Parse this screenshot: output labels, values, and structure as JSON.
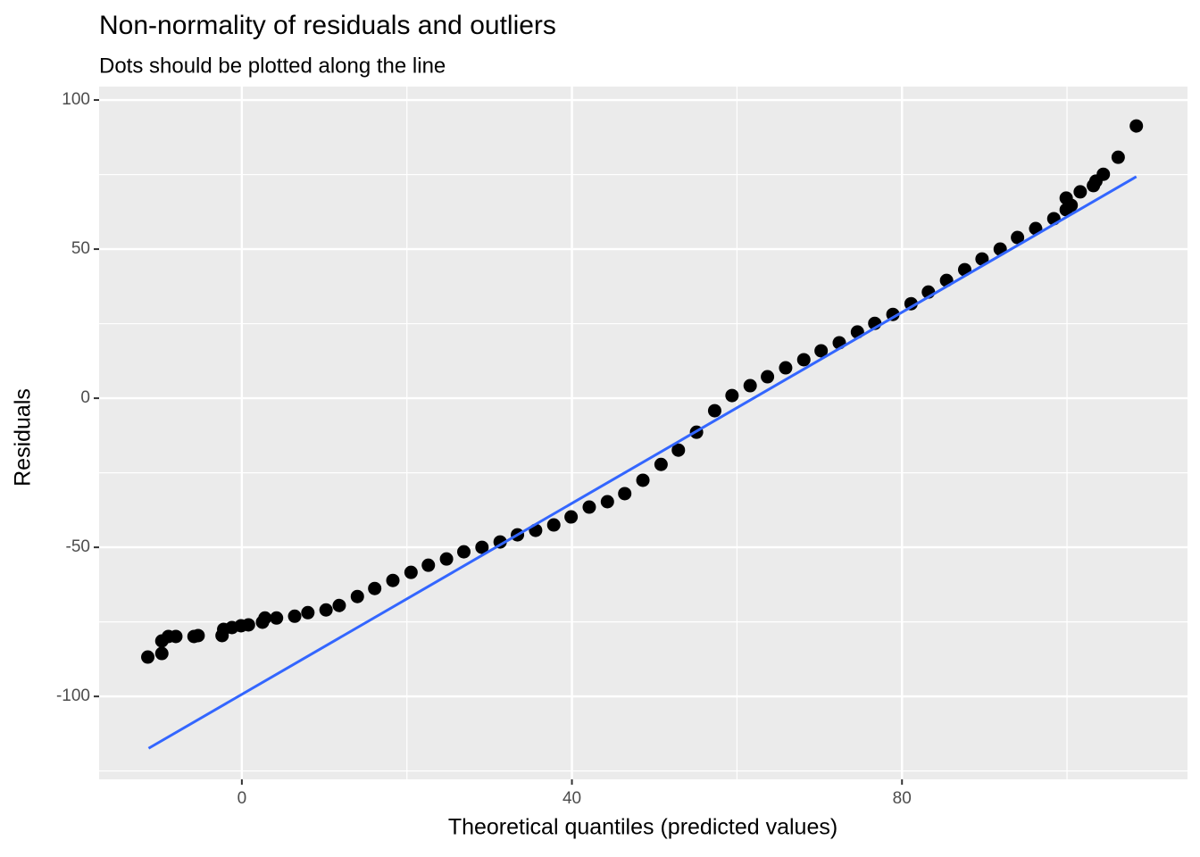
{
  "chart_data": {
    "type": "scatter",
    "title": "Non-normality of residuals and outliers",
    "subtitle": "Dots should be plotted along the line",
    "x_label": "Theoretical quantiles (predicted values)",
    "y_label": "Residuals",
    "xlim": [
      -17.3,
      114.6
    ],
    "ylim": [
      -127.8,
      104.5
    ],
    "xticks": [
      0,
      40,
      80
    ],
    "yticks": [
      -100,
      -50,
      0,
      50,
      100
    ],
    "grid": true,
    "minor_grid": true,
    "series": [
      {
        "type": "scatter",
        "color": "#000000",
        "x": [
          -11.4,
          -9.7,
          -9.7,
          -8.9,
          -8.0,
          -5.8,
          -5.3,
          -2.4,
          -2.2,
          -1.2,
          -0.1,
          0.8,
          2.5,
          2.8,
          4.2,
          6.4,
          8.0,
          10.2,
          11.8,
          14.0,
          16.1,
          18.3,
          20.5,
          22.6,
          24.8,
          26.9,
          29.1,
          31.3,
          33.4,
          35.6,
          37.8,
          39.9,
          42.1,
          44.3,
          46.4,
          48.6,
          50.8,
          52.9,
          55.1,
          57.3,
          59.4,
          61.6,
          63.7,
          65.9,
          68.1,
          70.2,
          72.4,
          74.6,
          76.7,
          78.9,
          81.1,
          83.2,
          85.4,
          87.6,
          89.7,
          91.9,
          94.0,
          96.2,
          98.4,
          99.9,
          100.5,
          99.9,
          101.6,
          103.2,
          103.5,
          104.4,
          106.2,
          108.4
        ],
        "values": [
          -86.8,
          -85.6,
          -81.4,
          -79.9,
          -79.9,
          -79.9,
          -79.6,
          -79.6,
          -77.5,
          -76.9,
          -76.3,
          -76.0,
          -75.1,
          -73.7,
          -73.7,
          -73.1,
          -71.9,
          -71.0,
          -69.5,
          -66.5,
          -63.8,
          -61.1,
          -58.4,
          -56.0,
          -53.9,
          -51.5,
          -50.0,
          -48.2,
          -45.8,
          -44.3,
          -42.5,
          -39.8,
          -36.5,
          -34.7,
          -32.0,
          -27.5,
          -22.2,
          -17.4,
          -11.4,
          -4.2,
          0.9,
          4.2,
          7.2,
          10.2,
          12.9,
          15.9,
          18.6,
          22.2,
          25.1,
          28.1,
          31.7,
          35.6,
          39.5,
          43.1,
          46.7,
          50.0,
          53.9,
          56.9,
          60.2,
          63.2,
          64.7,
          67.1,
          69.2,
          71.3,
          72.8,
          75.1,
          80.8,
          91.3
        ]
      },
      {
        "type": "line",
        "color": "#3366ff",
        "x": [
          -11.3,
          108.4
        ],
        "values": [
          -117.4,
          74.3
        ]
      }
    ]
  }
}
